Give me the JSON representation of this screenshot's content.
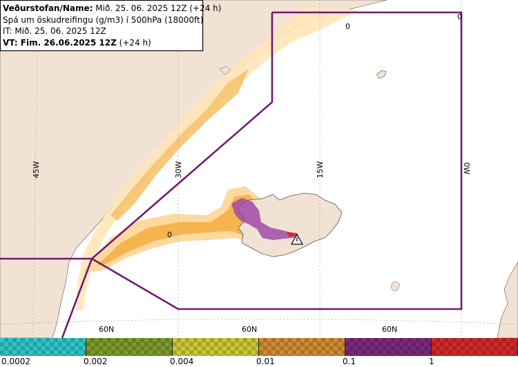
{
  "info": {
    "line1_bold": "Veðurstofan/Name:",
    "line1_rest": " Mið. 25. 06. 2025 12Z (+24 h)",
    "line2": "Spá um öskudreifingu (g/m3) í 500hPa (18000ft)",
    "line3": "IT: Mið. 25. 06. 2025 12Z",
    "line4_bold": "VT: Fim. 26.06.2025 12Z",
    "line4_rest": " (+24 h)"
  },
  "map_labels": {
    "lon_45w": "45W",
    "lon_30w": "30W",
    "lon_15w": "15W",
    "lon_0w": "0W",
    "lat_60n_a": "60N",
    "lat_60n_b": "60N",
    "lat_60n_c": "60N",
    "contour_0_a": "0",
    "contour_0_b": "0",
    "contour_0_c": "0"
  },
  "legend": {
    "colors": [
      "#2ec4c6",
      "#7a9a2a",
      "#c8c834",
      "#d08a30",
      "#7a2a7a",
      "#d02828"
    ],
    "ticks": [
      "0.0002",
      "0.002",
      "0.004",
      "0.01",
      "0.1",
      "1"
    ]
  },
  "colors": {
    "land": "#f2e2d4",
    "sea": "#ffffff",
    "boundary": "#6f1a73",
    "ash_low": "#ffd9a0",
    "ash_mid": "#f6b44e",
    "ash_high": "#a04aa8"
  },
  "volcano_marker": "warning-triangle"
}
